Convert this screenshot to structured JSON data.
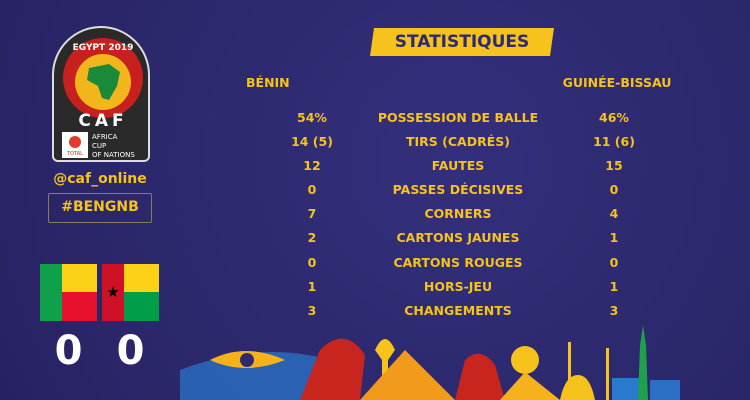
{
  "logo": {
    "top_text": "EGYPT 2019",
    "brand": "CAF",
    "tournament": [
      "AFRICA",
      "CUP",
      "OF NATIONS"
    ],
    "sponsor": "TOTAL"
  },
  "social": {
    "handle": "@caf_online",
    "hashtag": "#BENGNB"
  },
  "title": "STATISTIQUES",
  "teams": {
    "home": "BÉNIN",
    "away": "GUINÉE-BISSAU"
  },
  "score": {
    "home": "0",
    "away": "0"
  },
  "stats": [
    {
      "label": "POSSESSION DE BALLE",
      "home": "54%",
      "away": "46%"
    },
    {
      "label": "TIRS (CADRÉS)",
      "home": "14 (5)",
      "away": "11 (6)"
    },
    {
      "label": "FAUTES",
      "home": "12",
      "away": "15"
    },
    {
      "label": "PASSES DÉCISIVES",
      "home": "0",
      "away": "0"
    },
    {
      "label": "CORNERS",
      "home": "7",
      "away": "4"
    },
    {
      "label": "CARTONS JAUNES",
      "home": "2",
      "away": "1"
    },
    {
      "label": "CARTONS ROUGES",
      "home": "0",
      "away": "0"
    },
    {
      "label": "HORS-JEU",
      "home": "1",
      "away": "1"
    },
    {
      "label": "CHANGEMENTS",
      "home": "3",
      "away": "3"
    }
  ],
  "colors": {
    "background": "#2e2a72",
    "accent": "#f6c21c",
    "score": "#ffffff"
  }
}
